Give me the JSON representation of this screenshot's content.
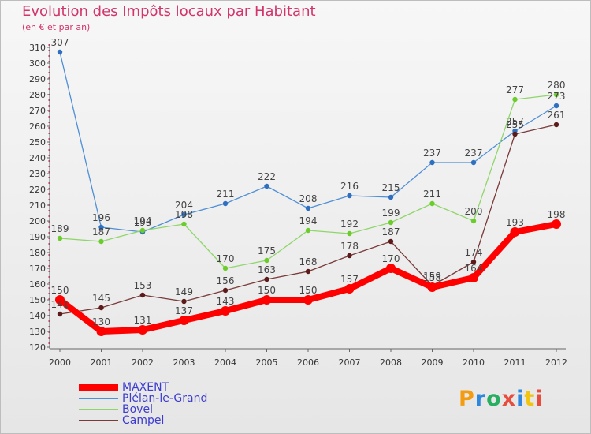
{
  "title": "Evolution des Impôts locaux par Habitant",
  "subtitle": "(en € et par an)",
  "brand": {
    "text": "Proxiti",
    "colors": [
      "#f39c12",
      "#2e86de",
      "#27ae60",
      "#e74c3c",
      "#2e86de",
      "#f1c40f",
      "#e74c3c"
    ]
  },
  "chart_data": {
    "type": "line",
    "categories": [
      "2000",
      "2001",
      "2002",
      "2003",
      "2004",
      "2005",
      "2006",
      "2007",
      "2008",
      "2009",
      "2010",
      "2011",
      "2012"
    ],
    "ylim": [
      120,
      310
    ],
    "yticks": [
      120,
      130,
      140,
      150,
      160,
      170,
      180,
      190,
      200,
      210,
      220,
      230,
      240,
      250,
      260,
      270,
      280,
      290,
      300,
      310
    ],
    "grid": false,
    "legend_position": "bottom-left",
    "series": [
      {
        "name": "Plélan-le-Grand",
        "color": "#4f8fd6",
        "marker": "#2e6fbf",
        "emphasis": false,
        "values": [
          307,
          196,
          193,
          204,
          211,
          222,
          208,
          216,
          215,
          237,
          237,
          257,
          273
        ]
      },
      {
        "name": "Bovel",
        "color": "#8fd66a",
        "marker": "#6ccc2c",
        "emphasis": false,
        "values": [
          189,
          187,
          194,
          198,
          170,
          175,
          194,
          192,
          199,
          211,
          200,
          277,
          280
        ]
      },
      {
        "name": "Campel",
        "color": "#7a3a3a",
        "marker": "#5c1a1a",
        "emphasis": false,
        "values": [
          141,
          145,
          153,
          149,
          156,
          163,
          168,
          178,
          187,
          159,
          174,
          255,
          261
        ]
      },
      {
        "name": "MAXENT",
        "color": "#ff0000",
        "marker": "#ff0000",
        "emphasis": true,
        "values": [
          150,
          130,
          131,
          137,
          143,
          150,
          150,
          157,
          170,
          158,
          164,
          193,
          198
        ]
      }
    ],
    "legend": [
      "MAXENT",
      "Plélan-le-Grand",
      "Bovel",
      "Campel"
    ]
  }
}
